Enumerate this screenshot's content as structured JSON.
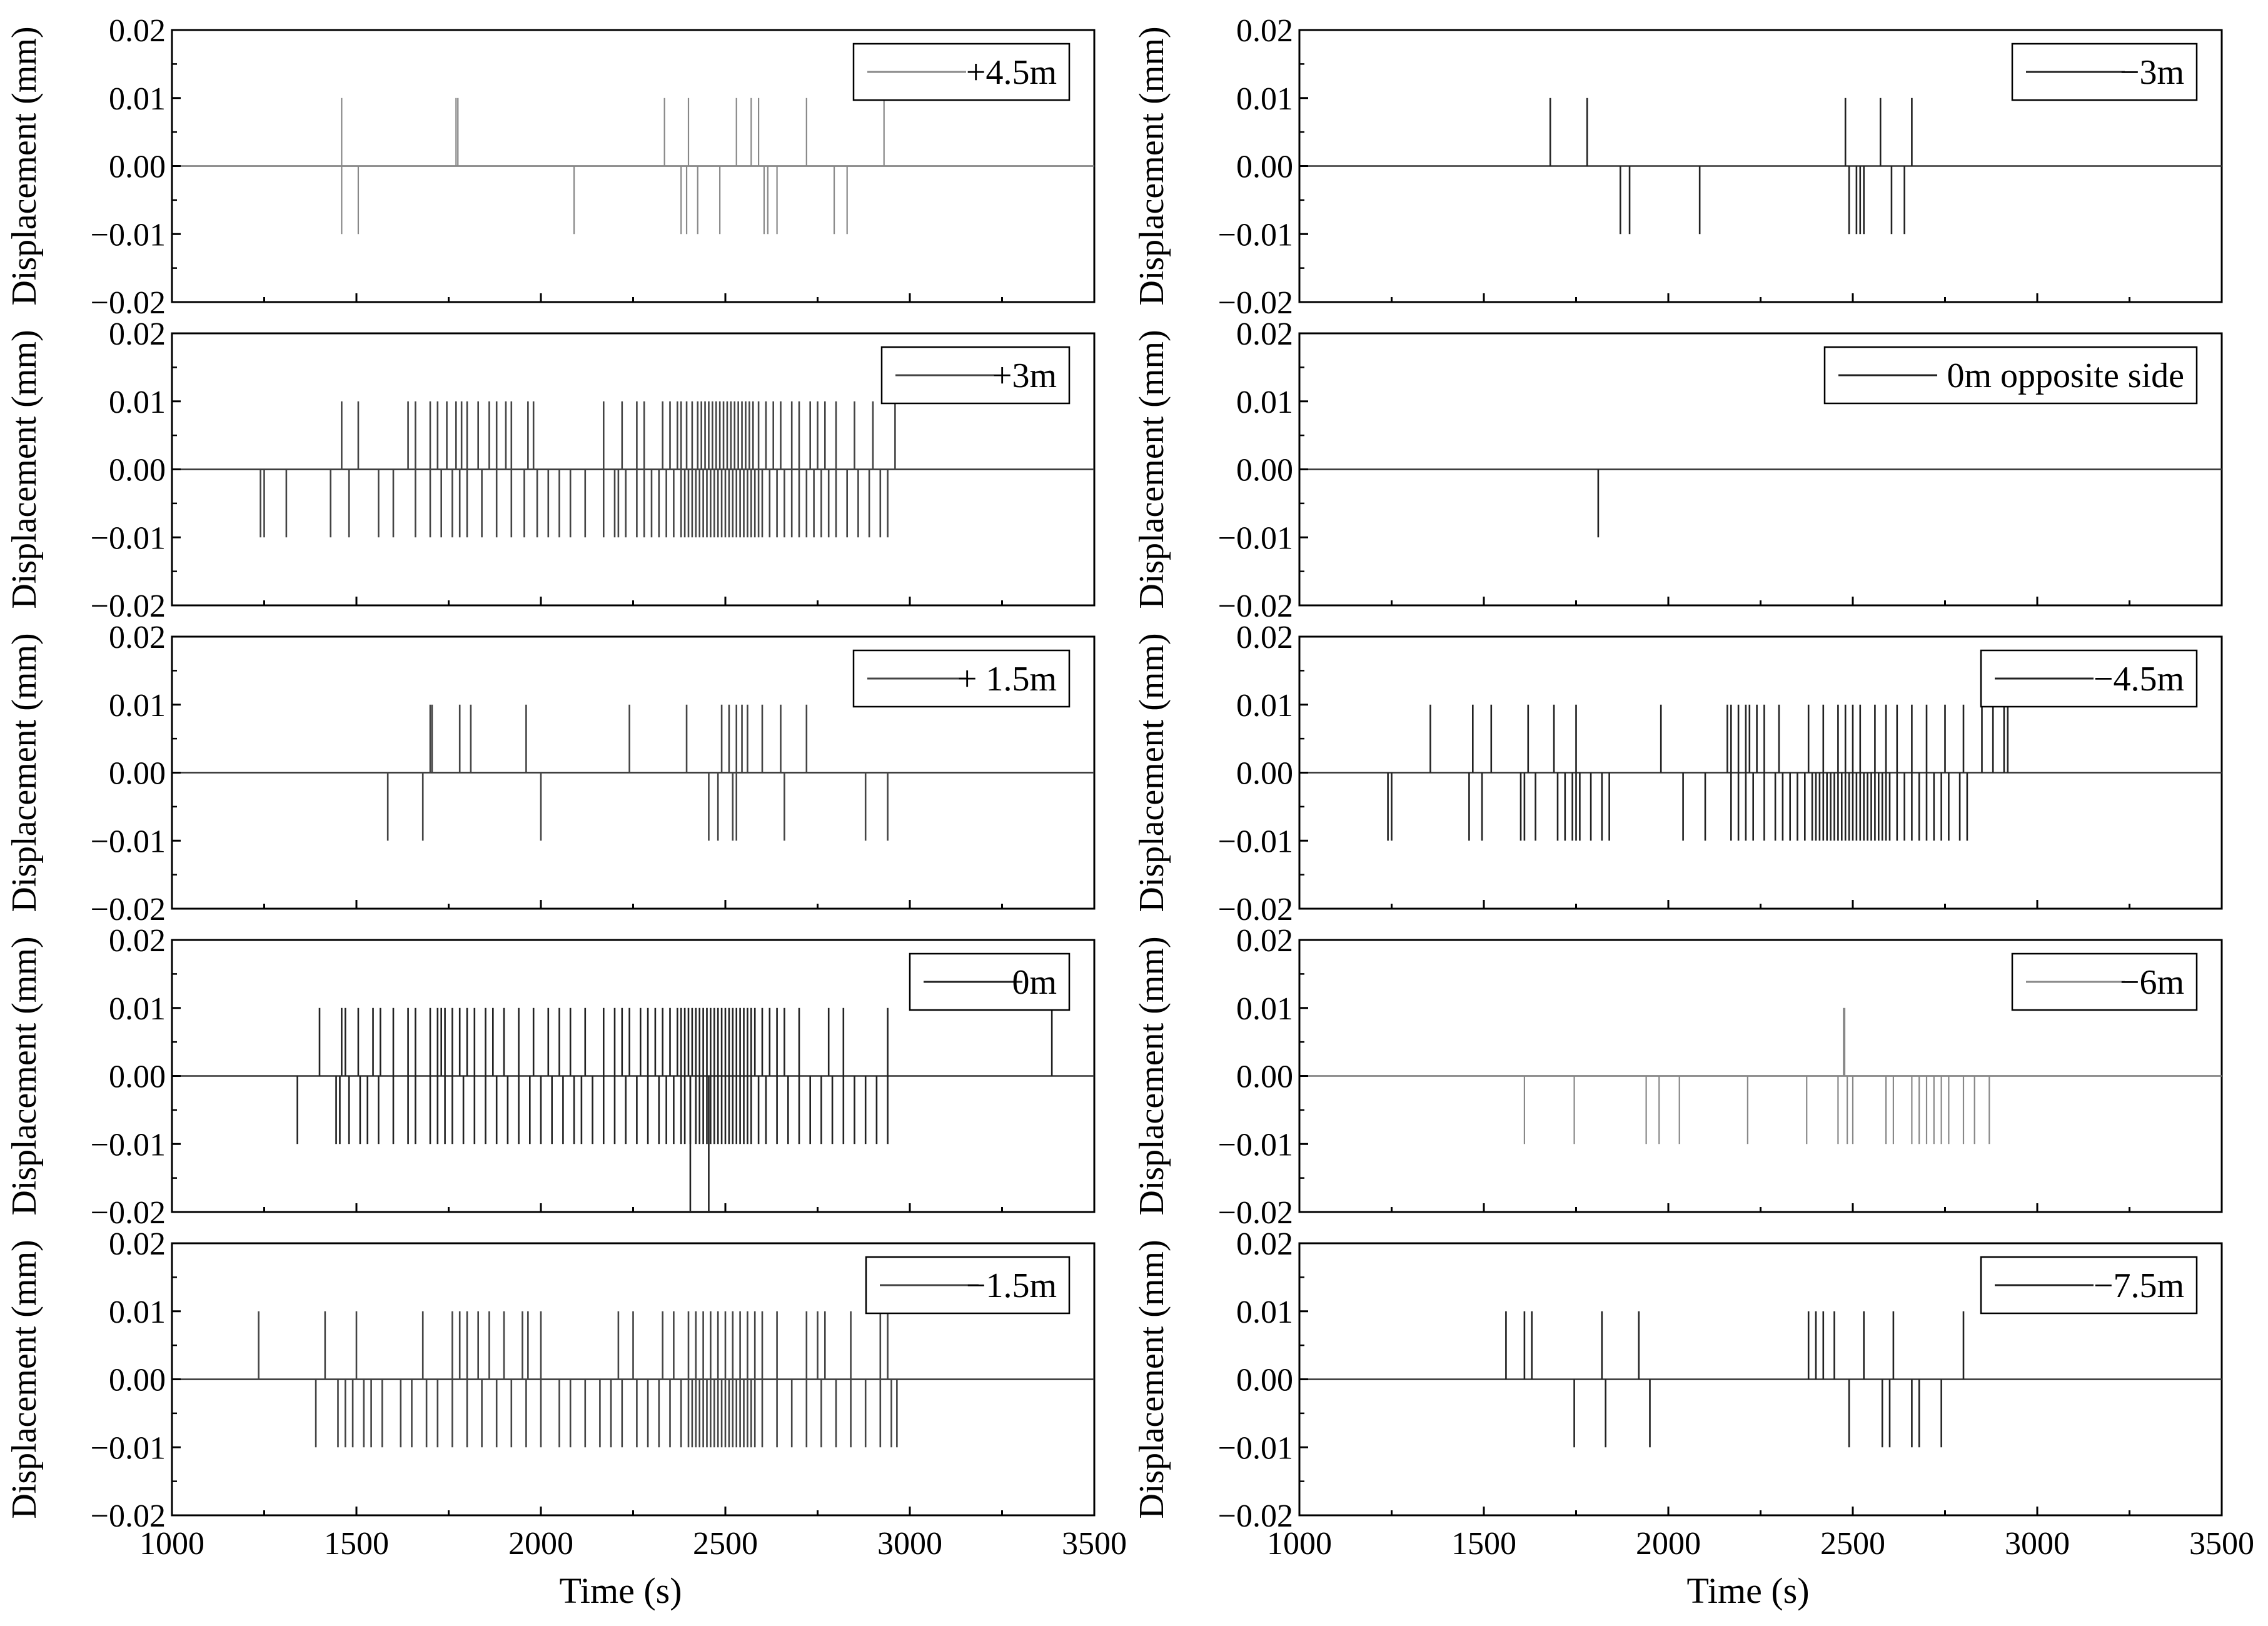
{
  "figure": {
    "columns": [
      {
        "column": "left",
        "xlabel": "Time (s)",
        "xticks": [
          "1000",
          "1500",
          "2000",
          "2500",
          "3000",
          "3500"
        ],
        "panels": [
          "+4.5m",
          "+3m",
          "+ 1.5m",
          "0m",
          "−1.5m"
        ]
      },
      {
        "column": "right",
        "xlabel": "Time (s)",
        "xticks": [
          "1000",
          "1500",
          "2000",
          "2500",
          "3000",
          "3500"
        ],
        "panels": [
          "−3m",
          "0m opposite side",
          "−4.5m",
          "−6m",
          "−7.5m"
        ]
      }
    ]
  },
  "chart_data": [
    {
      "type": "line",
      "legend": "+4.5m",
      "color": "#888888",
      "ylabel": "Displacement (mm)",
      "yticks": [
        "0.02",
        "0.01",
        "0.00",
        "−0.01",
        "−0.02"
      ],
      "ylim": [
        -0.02,
        0.02
      ],
      "xlim": [
        1000,
        3500
      ],
      "spikes_pos": [
        1460,
        1770,
        1775,
        2335,
        2400,
        2530,
        2570,
        2590,
        2720,
        2930
      ],
      "spikes_neg": [
        1460,
        1505,
        2090,
        2380,
        2395,
        2425,
        2485,
        2605,
        2615,
        2640,
        2795,
        2830
      ]
    },
    {
      "type": "line",
      "legend": "+3m",
      "color": "#444444",
      "ylabel": "Displacement (mm)",
      "yticks": [
        "0.02",
        "0.01",
        "0.00",
        "−0.01",
        "−0.02"
      ],
      "ylim": [
        -0.02,
        0.02
      ],
      "xlim": [
        1000,
        3500
      ],
      "spikes_pos": [
        1460,
        1505,
        1640,
        1660,
        1700,
        1720,
        1745,
        1770,
        1785,
        1800,
        1830,
        1860,
        1880,
        1905,
        1920,
        1965,
        1980,
        2170,
        2220,
        2260,
        2280,
        2330,
        2350,
        2370,
        2380,
        2395,
        2410,
        2425,
        2435,
        2445,
        2455,
        2465,
        2475,
        2485,
        2495,
        2505,
        2515,
        2525,
        2535,
        2545,
        2555,
        2565,
        2575,
        2590,
        2610,
        2630,
        2650,
        2680,
        2700,
        2730,
        2750,
        2770,
        2800,
        2850,
        2900,
        2960
      ],
      "spikes_neg": [
        1240,
        1250,
        1310,
        1430,
        1480,
        1560,
        1600,
        1660,
        1700,
        1730,
        1760,
        1780,
        1800,
        1840,
        1880,
        1920,
        1955,
        1990,
        2020,
        2050,
        2080,
        2120,
        2170,
        2200,
        2210,
        2230,
        2260,
        2280,
        2300,
        2320,
        2340,
        2360,
        2380,
        2390,
        2400,
        2410,
        2420,
        2430,
        2440,
        2450,
        2460,
        2470,
        2480,
        2490,
        2500,
        2510,
        2520,
        2530,
        2540,
        2550,
        2560,
        2570,
        2580,
        2590,
        2600,
        2620,
        2640,
        2660,
        2680,
        2700,
        2720,
        2740,
        2760,
        2780,
        2800,
        2830,
        2860,
        2890,
        2920,
        2940
      ]
    },
    {
      "type": "line",
      "legend": "+ 1.5m",
      "color": "#444444",
      "ylabel": "Displacement (mm)",
      "yticks": [
        "0.02",
        "0.01",
        "0.00",
        "−0.01",
        "−0.02"
      ],
      "ylim": [
        -0.02,
        0.02
      ],
      "xlim": [
        1000,
        3500
      ],
      "spikes_pos": [
        1700,
        1705,
        1780,
        1810,
        1960,
        2240,
        2395,
        2490,
        2510,
        2530,
        2545,
        2560,
        2600,
        2650,
        2720
      ],
      "spikes_neg": [
        1585,
        1680,
        2000,
        2455,
        2480,
        2520,
        2530,
        2660,
        2880,
        2940
      ]
    },
    {
      "type": "line",
      "legend": "0m",
      "color": "#222222",
      "ylabel": "Displacement (mm)",
      "yticks": [
        "0.02",
        "0.01",
        "0.00",
        "−0.01",
        "−0.02"
      ],
      "ylim": [
        -0.02,
        0.02
      ],
      "xlim": [
        1000,
        3500
      ],
      "spikes_pos": [
        1400,
        1460,
        1470,
        1505,
        1545,
        1565,
        1600,
        1640,
        1660,
        1700,
        1720,
        1730,
        1740,
        1760,
        1780,
        1800,
        1820,
        1850,
        1870,
        1900,
        1940,
        1980,
        2020,
        2050,
        2080,
        2120,
        2170,
        2200,
        2220,
        2240,
        2270,
        2290,
        2310,
        2330,
        2350,
        2370,
        2380,
        2390,
        2400,
        2410,
        2420,
        2430,
        2440,
        2450,
        2460,
        2470,
        2480,
        2490,
        2500,
        2510,
        2520,
        2530,
        2540,
        2550,
        2560,
        2570,
        2580,
        2600,
        2620,
        2640,
        2660,
        2700,
        2780,
        2820,
        2940,
        3385
      ],
      "spikes_neg": [
        1340,
        1445,
        1455,
        1480,
        1510,
        1530,
        1560,
        1600,
        1640,
        1660,
        1700,
        1720,
        1740,
        1760,
        1790,
        1820,
        1850,
        1880,
        1910,
        1940,
        1970,
        2000,
        2030,
        2060,
        2090,
        2110,
        2140,
        2170,
        2200,
        2230,
        2260,
        2290,
        2320,
        2340,
        2360,
        2380,
        2390,
        2405,
        2420,
        2430,
        2440,
        2450,
        2460,
        2470,
        2480,
        2490,
        2500,
        2510,
        2520,
        2530,
        2540,
        2550,
        2560,
        2570,
        2590,
        2610,
        2640,
        2670,
        2700,
        2730,
        2760,
        2790,
        2820,
        2850,
        2880,
        2910,
        2940
      ],
      "spikes_neg2": [
        2405,
        2455
      ]
    },
    {
      "type": "line",
      "legend": "−1.5m",
      "color": "#444444",
      "ylabel": "Displacement (mm)",
      "yticks": [
        "0.02",
        "0.01",
        "0.00",
        "−0.01",
        "−0.02"
      ],
      "ylim": [
        -0.02,
        0.02
      ],
      "xlim": [
        1000,
        3500
      ],
      "spikes_pos": [
        1235,
        1415,
        1500,
        1680,
        1760,
        1780,
        1800,
        1830,
        1860,
        1900,
        1950,
        1965,
        2000,
        2210,
        2250,
        2330,
        2360,
        2400,
        2420,
        2440,
        2460,
        2480,
        2500,
        2520,
        2540,
        2560,
        2580,
        2600,
        2640,
        2720,
        2750,
        2770,
        2840,
        2920,
        2940
      ],
      "spikes_neg": [
        1390,
        1450,
        1470,
        1490,
        1520,
        1540,
        1570,
        1620,
        1650,
        1690,
        1720,
        1760,
        1800,
        1840,
        1880,
        1920,
        1960,
        2000,
        2050,
        2080,
        2120,
        2160,
        2190,
        2220,
        2260,
        2290,
        2320,
        2350,
        2380,
        2400,
        2410,
        2420,
        2430,
        2440,
        2450,
        2460,
        2470,
        2480,
        2490,
        2500,
        2510,
        2520,
        2530,
        2540,
        2550,
        2560,
        2570,
        2580,
        2600,
        2640,
        2680,
        2720,
        2760,
        2800,
        2840,
        2880,
        2920,
        2950,
        2965
      ]
    },
    {
      "type": "line",
      "legend": "−3m",
      "color": "#222222",
      "ylabel": "Displacement (mm)",
      "yticks": [
        "0.02",
        "0.01",
        "0.00",
        "−0.01",
        "−0.02"
      ],
      "ylim": [
        -0.02,
        0.02
      ],
      "xlim": [
        1000,
        3500
      ],
      "spikes_pos": [
        1680,
        1780,
        2480,
        2575,
        2660
      ],
      "spikes_neg": [
        1870,
        1895,
        2085,
        2490,
        2510,
        2520,
        2530,
        2605,
        2640
      ]
    },
    {
      "type": "line",
      "legend": "0m opposite side",
      "color": "#222222",
      "ylabel": "Displacement (mm)",
      "yticks": [
        "0.02",
        "0.01",
        "0.00",
        "−0.01",
        "−0.02"
      ],
      "ylim": [
        -0.02,
        0.02
      ],
      "xlim": [
        1000,
        3500
      ],
      "spikes_pos": [],
      "spikes_neg": [
        1810
      ]
    },
    {
      "type": "line",
      "legend": "−4.5m",
      "color": "#222222",
      "ylabel": "Displacement (mm)",
      "yticks": [
        "0.02",
        "0.01",
        "0.00",
        "−0.01",
        "−0.02"
      ],
      "ylim": [
        -0.02,
        0.02
      ],
      "xlim": [
        1000,
        3500
      ],
      "spikes_pos": [
        1355,
        1470,
        1520,
        1620,
        1690,
        1750,
        1980,
        2160,
        2170,
        2190,
        2210,
        2220,
        2240,
        2260,
        2300,
        2380,
        2420,
        2460,
        2480,
        2500,
        2520,
        2560,
        2590,
        2620,
        2660,
        2700,
        2750,
        2800,
        2850,
        2880,
        2910,
        2920
      ],
      "spikes_neg": [
        1240,
        1250,
        1460,
        1495,
        1600,
        1610,
        1640,
        1700,
        1720,
        1740,
        1750,
        1760,
        1790,
        1820,
        1840,
        2040,
        2100,
        2170,
        2190,
        2210,
        2230,
        2260,
        2290,
        2310,
        2330,
        2350,
        2370,
        2390,
        2400,
        2410,
        2420,
        2430,
        2440,
        2450,
        2460,
        2470,
        2480,
        2490,
        2500,
        2510,
        2520,
        2530,
        2540,
        2550,
        2560,
        2570,
        2580,
        2590,
        2600,
        2620,
        2640,
        2660,
        2680,
        2700,
        2720,
        2740,
        2760,
        2790,
        2810
      ]
    },
    {
      "type": "line",
      "legend": "−6m",
      "color": "#888888",
      "ylabel": "Displacement (mm)",
      "yticks": [
        "0.02",
        "0.01",
        "0.00",
        "−0.01",
        "−0.02"
      ],
      "ylim": [
        -0.02,
        0.02
      ],
      "xlim": [
        1000,
        3500
      ],
      "spikes_pos": [
        2475,
        2478
      ],
      "spikes_neg": [
        1610,
        1745,
        1940,
        1975,
        2030,
        2215,
        2375,
        2460,
        2485,
        2500,
        2590,
        2610,
        2660,
        2680,
        2700,
        2720,
        2740,
        2760,
        2800,
        2830,
        2870
      ]
    },
    {
      "type": "line",
      "legend": "−7.5m",
      "color": "#222222",
      "ylabel": "Displacement (mm)",
      "yticks": [
        "0.02",
        "0.01",
        "0.00",
        "−0.01",
        "−0.02"
      ],
      "ylim": [
        -0.02,
        0.02
      ],
      "xlim": [
        1000,
        3500
      ],
      "spikes_pos": [
        1560,
        1610,
        1630,
        1820,
        1920,
        2380,
        2400,
        2420,
        2450,
        2530,
        2610,
        2800
      ],
      "spikes_neg": [
        1745,
        1830,
        1950,
        2490,
        2580,
        2600,
        2660,
        2680,
        2740
      ]
    }
  ]
}
